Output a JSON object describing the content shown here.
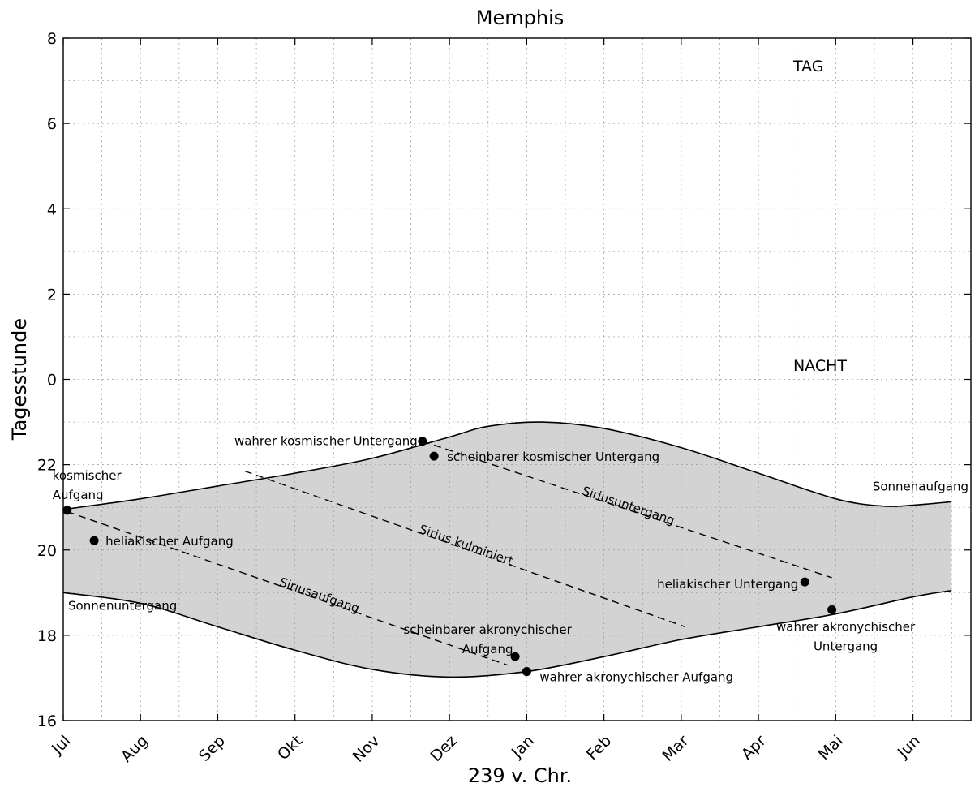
{
  "chart_data": {
    "type": "line",
    "title": "Memphis",
    "xlabel": "239 v. Chr.",
    "ylabel": "Tagesstunde",
    "grid": true,
    "x_tick_labels": [
      "Jul",
      "Aug",
      "Sep",
      "Okt",
      "Nov",
      "Dez",
      "Jan",
      "Feb",
      "Mar",
      "Apr",
      "Mai",
      "Jun"
    ],
    "y_tick_labels": [
      "8",
      "6",
      "4",
      "2",
      "0",
      "22",
      "20",
      "18",
      "16"
    ],
    "y_range_hours_after_16": [
      0,
      16
    ],
    "region_labels": {
      "day": "TAG",
      "night": "NACHT"
    },
    "curve_labels": {
      "sunrise": "Sonnenaufgang",
      "sunset": "Sonnenuntergang"
    },
    "series": [
      {
        "name": "Sonnenaufgang",
        "style": "solid",
        "points": [
          [
            0,
            4.95
          ],
          [
            1,
            5.2
          ],
          [
            2,
            5.5
          ],
          [
            3,
            5.8
          ],
          [
            4,
            6.15
          ],
          [
            5,
            6.65
          ],
          [
            5.5,
            6.9
          ],
          [
            6.2,
            7.0
          ],
          [
            7,
            6.85
          ],
          [
            8,
            6.4
          ],
          [
            9,
            5.8
          ],
          [
            10,
            5.2
          ],
          [
            10.6,
            5.03
          ],
          [
            11,
            5.05
          ],
          [
            11.5,
            5.13
          ]
        ],
        "color": "#000000"
      },
      {
        "name": "Sonnenuntergang",
        "style": "solid",
        "points": [
          [
            0,
            3.0
          ],
          [
            1,
            2.75
          ],
          [
            2,
            2.2
          ],
          [
            3,
            1.65
          ],
          [
            4,
            1.2
          ],
          [
            5,
            1.02
          ],
          [
            6,
            1.15
          ],
          [
            7,
            1.5
          ],
          [
            8,
            1.9
          ],
          [
            9,
            2.2
          ],
          [
            10,
            2.5
          ],
          [
            11,
            2.9
          ],
          [
            11.5,
            3.05
          ]
        ],
        "color": "#000000"
      },
      {
        "name": "Siriusaufgang",
        "style": "dashed",
        "points": [
          [
            0.05,
            4.9
          ],
          [
            5.75,
            1.3
          ]
        ],
        "color": "#000000"
      },
      {
        "name": "Sirius kulminiert",
        "style": "dashed",
        "points": [
          [
            2.35,
            5.85
          ],
          [
            8.05,
            2.2
          ]
        ],
        "color": "#000000"
      },
      {
        "name": "Siriusuntergang",
        "style": "dashed",
        "points": [
          [
            4.65,
            6.55
          ],
          [
            9.95,
            3.35
          ]
        ],
        "color": "#000000"
      }
    ],
    "events": [
      {
        "label": "kosmischer\nAufgang",
        "x": 0.05,
        "y": 4.93
      },
      {
        "label": "heliakischer Aufgang",
        "x": 0.4,
        "y": 4.22
      },
      {
        "label": "wahrer kosmischer Untergang",
        "x": 4.65,
        "y": 6.55
      },
      {
        "label": "scheinbarer kosmischer Untergang",
        "x": 4.8,
        "y": 6.2
      },
      {
        "label": "scheinbarer akronychischer\nAufgang",
        "x": 5.85,
        "y": 1.5
      },
      {
        "label": "wahrer akronychischer Aufgang",
        "x": 6.0,
        "y": 1.15
      },
      {
        "label": "heliakischer Untergang",
        "x": 9.6,
        "y": 3.25
      },
      {
        "label": "wahrer akronychischer\nUntergang",
        "x": 9.95,
        "y": 2.6
      }
    ]
  }
}
